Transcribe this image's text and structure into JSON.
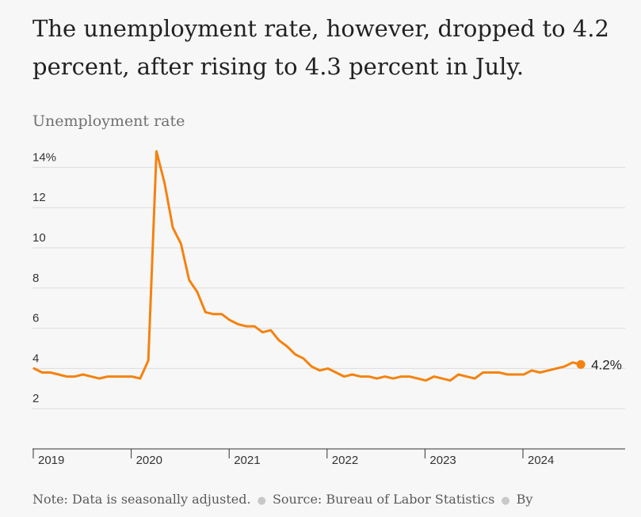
{
  "headline": "The unemployment rate, however, dropped to 4.2 percent, after rising to 4.3 percent in July.",
  "footer": {
    "note": "Note: Data is seasonally adjusted.",
    "source": "Source: Bureau of Labor Statistics",
    "byline": "By"
  },
  "colors": {
    "line": "#f5820f",
    "grid": "#dddddd",
    "axis": "#333333"
  },
  "chart_data": {
    "type": "line",
    "title": "Unemployment rate",
    "xlabel": "",
    "ylabel": "",
    "ylim": [
      0,
      15
    ],
    "grid": true,
    "y_ticks": [
      {
        "value": 2,
        "label": "2"
      },
      {
        "value": 4,
        "label": "4"
      },
      {
        "value": 6,
        "label": "6"
      },
      {
        "value": 8,
        "label": "8"
      },
      {
        "value": 10,
        "label": "10"
      },
      {
        "value": 12,
        "label": "12"
      },
      {
        "value": 14,
        "label": "14%"
      }
    ],
    "x_ticks": [
      "2019",
      "2020",
      "2021",
      "2022",
      "2023",
      "2024"
    ],
    "end_label": "4.2%",
    "series": [
      {
        "start": "2019-01",
        "values": [
          4.0,
          3.8,
          3.8,
          3.7,
          3.6,
          3.6,
          3.7,
          3.6,
          3.5,
          3.6,
          3.6,
          3.6,
          3.6,
          3.5,
          4.4,
          14.8,
          13.2,
          11.0,
          10.2,
          8.4,
          7.8,
          6.8,
          6.7,
          6.7,
          6.4,
          6.2,
          6.1,
          6.1,
          5.8,
          5.9,
          5.4,
          5.1,
          4.7,
          4.5,
          4.1,
          3.9,
          4.0,
          3.8,
          3.6,
          3.7,
          3.6,
          3.6,
          3.5,
          3.6,
          3.5,
          3.6,
          3.6,
          3.5,
          3.4,
          3.6,
          3.5,
          3.4,
          3.7,
          3.6,
          3.5,
          3.8,
          3.8,
          3.8,
          3.7,
          3.7,
          3.7,
          3.9,
          3.8,
          3.9,
          4.0,
          4.1,
          4.3,
          4.2
        ]
      }
    ]
  }
}
